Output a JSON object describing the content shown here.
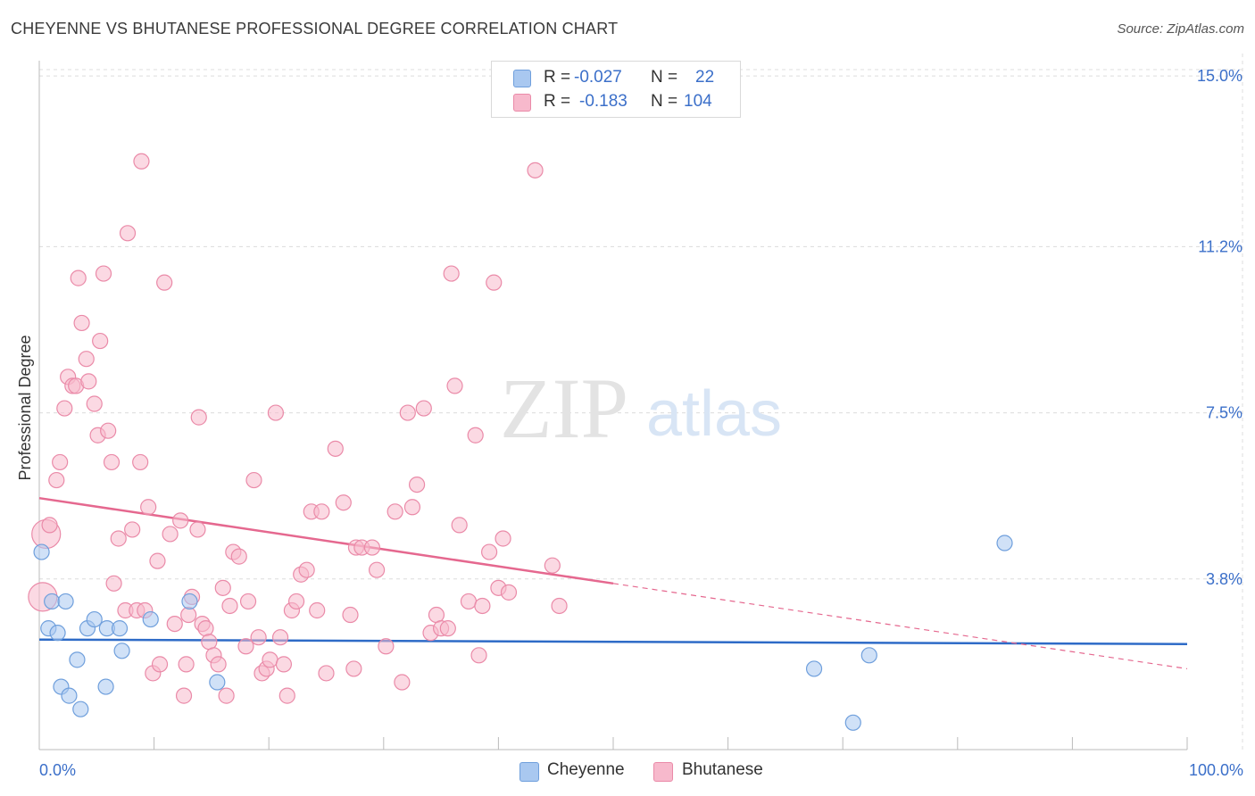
{
  "title": "CHEYENNE VS BHUTANESE PROFESSIONAL DEGREE CORRELATION CHART",
  "source": "Source: ZipAtlas.com",
  "watermark": {
    "zip": "ZIP",
    "atlas": "atlas"
  },
  "legend": {
    "rows": [
      {
        "r_label": "R =",
        "r_value": "-0.027",
        "n_label": "N =",
        "n_value": "22",
        "color": "#a9c8f0",
        "border": "#6f9fdc"
      },
      {
        "r_label": "R =",
        "r_value": "-0.183",
        "n_label": "N =",
        "n_value": "104",
        "color": "#f7b9cc",
        "border": "#ea8aa8"
      }
    ]
  },
  "bottom_legend": [
    {
      "label": "Cheyenne",
      "color": "#a9c8f0",
      "border": "#6f9fdc"
    },
    {
      "label": "Bhutanese",
      "color": "#f7b9cc",
      "border": "#ea8aa8"
    }
  ],
  "chart_data": {
    "type": "scatter",
    "xlabel": "",
    "ylabel": "Professional Degree",
    "xlim": [
      0,
      100
    ],
    "ylim": [
      0,
      15.5
    ],
    "x_tick_labels": [
      "0.0%",
      "100.0%"
    ],
    "y_ticks": [
      3.8,
      7.5,
      11.2,
      15.0
    ],
    "y_tick_labels": [
      "3.8%",
      "7.5%",
      "11.2%",
      "15.0%"
    ],
    "series": [
      {
        "name": "Cheyenne",
        "color": "#a9c8f0",
        "stroke": "#6f9fdc",
        "trend": {
          "x0": 0,
          "y0": 2.45,
          "x1": 100,
          "y1": 2.35,
          "color": "#2e6bc7"
        },
        "points": [
          [
            0.2,
            4.4
          ],
          [
            0.8,
            2.7
          ],
          [
            1.1,
            3.3
          ],
          [
            1.6,
            2.6
          ],
          [
            2.3,
            3.3
          ],
          [
            1.9,
            1.4
          ],
          [
            2.6,
            1.2
          ],
          [
            3.3,
            2.0
          ],
          [
            3.6,
            0.9
          ],
          [
            4.2,
            2.7
          ],
          [
            4.8,
            2.9
          ],
          [
            5.9,
            2.7
          ],
          [
            5.8,
            1.4
          ],
          [
            7.0,
            2.7
          ],
          [
            7.2,
            2.2
          ],
          [
            9.7,
            2.9
          ],
          [
            13.1,
            3.3
          ],
          [
            15.5,
            1.5
          ],
          [
            84.1,
            4.6
          ],
          [
            67.5,
            1.8
          ],
          [
            72.3,
            2.1
          ],
          [
            70.9,
            0.6
          ]
        ]
      },
      {
        "name": "Bhutanese",
        "color": "#f7b9cc",
        "stroke": "#ea8aa8",
        "trend": {
          "x0": 0,
          "y0": 5.6,
          "x1": 50,
          "y1": 3.7,
          "x_dash_end": 100,
          "y_dash_end": 1.8,
          "color": "#e5688f"
        },
        "points": [
          [
            0.3,
            3.4
          ],
          [
            0.6,
            4.8
          ],
          [
            0.9,
            5.0
          ],
          [
            1.5,
            6.0
          ],
          [
            1.8,
            6.4
          ],
          [
            2.2,
            7.6
          ],
          [
            2.5,
            8.3
          ],
          [
            2.9,
            8.1
          ],
          [
            3.2,
            8.1
          ],
          [
            3.4,
            10.5
          ],
          [
            3.7,
            9.5
          ],
          [
            4.1,
            8.7
          ],
          [
            4.3,
            8.2
          ],
          [
            4.8,
            7.7
          ],
          [
            5.1,
            7.0
          ],
          [
            5.3,
            9.1
          ],
          [
            5.6,
            10.6
          ],
          [
            6.0,
            7.1
          ],
          [
            6.3,
            6.4
          ],
          [
            6.5,
            3.7
          ],
          [
            6.9,
            4.7
          ],
          [
            7.5,
            3.1
          ],
          [
            7.7,
            11.5
          ],
          [
            8.1,
            4.9
          ],
          [
            8.5,
            3.1
          ],
          [
            8.8,
            6.4
          ],
          [
            8.9,
            13.1
          ],
          [
            9.2,
            3.1
          ],
          [
            9.5,
            5.4
          ],
          [
            9.9,
            1.7
          ],
          [
            10.3,
            4.2
          ],
          [
            10.5,
            1.9
          ],
          [
            10.9,
            10.4
          ],
          [
            11.4,
            4.8
          ],
          [
            11.8,
            2.8
          ],
          [
            12.3,
            5.1
          ],
          [
            12.6,
            1.2
          ],
          [
            12.8,
            1.9
          ],
          [
            13.0,
            3.0
          ],
          [
            13.3,
            3.4
          ],
          [
            13.8,
            4.9
          ],
          [
            13.9,
            7.4
          ],
          [
            14.2,
            2.8
          ],
          [
            14.5,
            2.7
          ],
          [
            14.8,
            2.4
          ],
          [
            15.2,
            2.1
          ],
          [
            15.6,
            1.9
          ],
          [
            16.0,
            3.6
          ],
          [
            16.3,
            1.2
          ],
          [
            16.6,
            3.2
          ],
          [
            16.9,
            4.4
          ],
          [
            17.4,
            4.3
          ],
          [
            18.0,
            2.3
          ],
          [
            18.2,
            3.3
          ],
          [
            18.7,
            6.0
          ],
          [
            19.1,
            2.5
          ],
          [
            19.4,
            1.7
          ],
          [
            19.8,
            1.8
          ],
          [
            20.1,
            2.0
          ],
          [
            20.6,
            7.5
          ],
          [
            21.0,
            2.5
          ],
          [
            21.3,
            1.9
          ],
          [
            21.6,
            1.2
          ],
          [
            22.0,
            3.1
          ],
          [
            22.4,
            3.3
          ],
          [
            22.8,
            3.9
          ],
          [
            23.3,
            4.0
          ],
          [
            23.7,
            5.3
          ],
          [
            24.2,
            3.1
          ],
          [
            24.6,
            5.3
          ],
          [
            25.0,
            1.7
          ],
          [
            25.8,
            6.7
          ],
          [
            26.5,
            5.5
          ],
          [
            27.1,
            3.0
          ],
          [
            27.4,
            1.8
          ],
          [
            27.6,
            4.5
          ],
          [
            28.1,
            4.5
          ],
          [
            29.0,
            4.5
          ],
          [
            29.4,
            4.0
          ],
          [
            30.2,
            2.3
          ],
          [
            31.0,
            5.3
          ],
          [
            31.6,
            1.5
          ],
          [
            32.1,
            7.5
          ],
          [
            32.5,
            5.4
          ],
          [
            32.9,
            5.9
          ],
          [
            33.5,
            7.6
          ],
          [
            34.1,
            2.6
          ],
          [
            34.6,
            3.0
          ],
          [
            35.0,
            2.7
          ],
          [
            35.6,
            2.7
          ],
          [
            35.9,
            10.6
          ],
          [
            36.2,
            8.1
          ],
          [
            36.6,
            5.0
          ],
          [
            37.4,
            3.3
          ],
          [
            38.0,
            7.0
          ],
          [
            38.3,
            2.1
          ],
          [
            38.6,
            3.2
          ],
          [
            39.2,
            4.4
          ],
          [
            39.6,
            10.4
          ],
          [
            40.0,
            3.6
          ],
          [
            40.4,
            4.7
          ],
          [
            40.9,
            3.5
          ],
          [
            43.2,
            12.9
          ],
          [
            44.7,
            4.1
          ],
          [
            45.3,
            3.2
          ]
        ]
      }
    ]
  }
}
